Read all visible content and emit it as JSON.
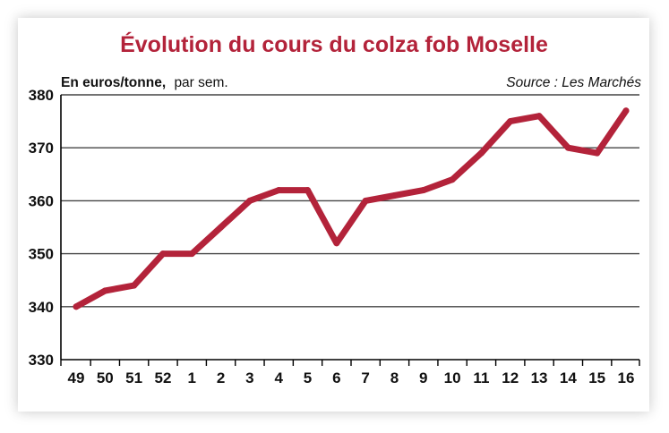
{
  "chart_data": {
    "type": "line",
    "title": "Évolution du cours du colza fob Moselle",
    "unit_label_bold": "En euros/tonne,",
    "unit_label_normal": "par sem.",
    "source": "Source : Les Marchés",
    "xlabel": "",
    "ylabel": "",
    "categories": [
      "49",
      "50",
      "51",
      "52",
      "1",
      "2",
      "3",
      "4",
      "5",
      "6",
      "7",
      "8",
      "9",
      "10",
      "11",
      "12",
      "13",
      "14",
      "15",
      "16"
    ],
    "series": [
      {
        "values": [
          340,
          343,
          344,
          350,
          350,
          355,
          360,
          362,
          362,
          352,
          360,
          361,
          362,
          364,
          369,
          375,
          376,
          370,
          369,
          377
        ]
      }
    ],
    "ylim": [
      330,
      380
    ],
    "yticks": [
      330,
      340,
      350,
      360,
      370,
      380
    ],
    "grid": true,
    "colors": {
      "line": "#b3233a",
      "title": "#b3233a",
      "grid": "#444444",
      "axis": "#000000"
    }
  }
}
